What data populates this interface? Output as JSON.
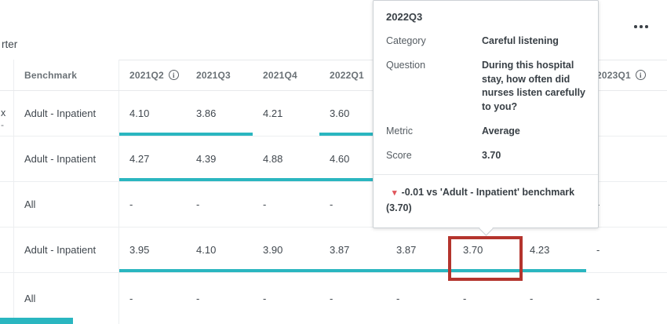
{
  "colors": {
    "teal_bar": "#2AB6C0",
    "highlight_border": "#B4342D",
    "trend_down": "#E0565C"
  },
  "clipped": {
    "title_fragment": "rter",
    "row_fragment_top": "x",
    "row_fragment_bottom": "-"
  },
  "table": {
    "header": {
      "benchmark": "Benchmark",
      "info_glyph": "i",
      "quarters": [
        {
          "label": "2021Q2",
          "info": true
        },
        {
          "label": "2021Q3",
          "info": false
        },
        {
          "label": "2021Q4",
          "info": false
        },
        {
          "label": "2022Q1",
          "info": false
        },
        {
          "label": "",
          "info": false
        },
        {
          "label": "",
          "info": false
        },
        {
          "label": "",
          "info": false
        },
        {
          "label": "2023Q1",
          "info": true
        }
      ]
    },
    "rows": [
      {
        "benchmark": "Adult - Inpatient",
        "values": [
          "4.10",
          "3.86",
          "4.21",
          "3.60",
          "",
          "",
          "",
          ""
        ],
        "bars": [
          true,
          true,
          false,
          true,
          true,
          false,
          false,
          false
        ]
      },
      {
        "benchmark": "Adult - Inpatient",
        "values": [
          "4.27",
          "4.39",
          "4.88",
          "4.60",
          "",
          "",
          "",
          ""
        ],
        "bars": [
          true,
          true,
          true,
          true,
          true,
          false,
          false,
          false
        ]
      },
      {
        "benchmark": "All",
        "values": [
          "-",
          "-",
          "-",
          "-",
          "",
          "",
          "",
          "-"
        ],
        "bars": [
          false,
          false,
          false,
          false,
          false,
          false,
          false,
          false
        ]
      },
      {
        "benchmark": "Adult - Inpatient",
        "values": [
          "3.95",
          "4.10",
          "3.90",
          "3.87",
          "3.87",
          "3.70",
          "4.23",
          "-"
        ],
        "bars": [
          true,
          true,
          true,
          true,
          true,
          true,
          true,
          false
        ],
        "highlighted_value": "3.70"
      },
      {
        "benchmark": "All",
        "values": [
          "-",
          "-",
          "-",
          "-",
          "-",
          "-",
          "-",
          "-"
        ],
        "bars": [
          false,
          false,
          false,
          false,
          false,
          false,
          false,
          false
        ]
      }
    ]
  },
  "tooltip": {
    "title": "2022Q3",
    "trend_icon": "▾",
    "rows": [
      {
        "label": "Category",
        "value": "Careful listening"
      },
      {
        "label": "Question",
        "value": "During this hospital stay, how often did nurses listen carefully to you?"
      },
      {
        "label": "Metric",
        "value": "Average"
      },
      {
        "label": "Score",
        "value": "3.70"
      }
    ],
    "benchmark_note": {
      "line1": "-0.01 vs 'Adult - Inpatient' benchmark",
      "line2": "(3.70)"
    }
  }
}
